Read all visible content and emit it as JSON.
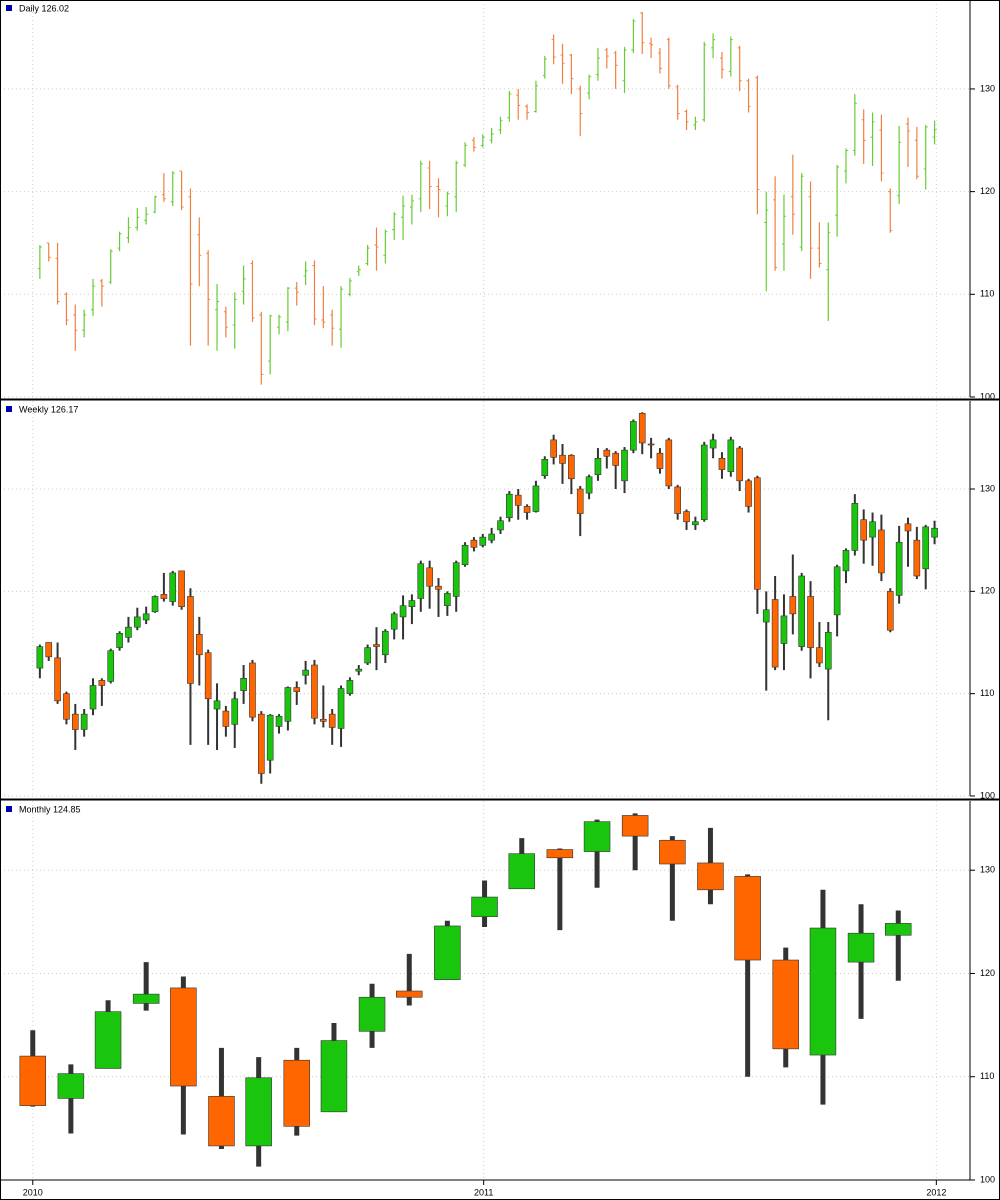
{
  "chart_data": [
    {
      "type": "ohlc",
      "title": "Daily 126.02",
      "legend_color": "#0000aa",
      "up_color": "#66cc33",
      "down_color": "#f08040",
      "xlim": [
        -4.5,
        105.0
      ],
      "ylim": [
        100,
        138.66
      ],
      "yticks": [
        100,
        110,
        120,
        130
      ],
      "grid": true,
      "open": [
        112.5,
        115.0,
        113.5,
        110.0,
        108.0,
        106.5,
        108.5,
        111.3,
        111.2,
        114.5,
        115.5,
        116.5,
        117.2,
        118.0,
        119.7,
        119.0,
        122.0,
        119.5,
        115.8,
        114.0,
        108.5,
        108.3,
        107.0,
        110.3,
        113.0,
        108.0,
        103.5,
        106.8,
        107.3,
        110.6,
        111.8,
        112.8,
        107.5,
        108.0,
        106.6,
        110.0,
        112.2,
        113.0,
        114.8,
        113.8,
        116.3,
        117.5,
        118.5,
        119.3,
        122.3,
        120.5,
        118.6,
        119.5,
        122.6,
        125.0,
        124.5,
        125.0,
        126.0,
        127.2,
        129.4,
        128.3,
        127.8,
        131.3,
        134.8,
        133.3,
        133.3,
        130.0,
        129.6,
        131.4,
        133.8,
        133.5,
        130.8,
        133.8,
        137.4,
        134.4,
        133.5,
        134.8,
        130.2,
        127.8,
        126.5,
        127.0,
        134.0,
        133.0,
        131.7,
        134.0,
        130.8,
        131.1,
        117.0,
        119.2,
        114.9,
        119.5,
        114.6,
        119.5,
        114.5,
        112.4,
        117.7,
        122.0,
        124.0,
        127.0,
        125.3,
        126.0,
        120.0,
        119.6,
        126.6,
        125.0,
        122.2,
        125.3
      ],
      "high": [
        114.8,
        115.0,
        115.0,
        110.2,
        109.0,
        108.5,
        111.5,
        111.5,
        114.4,
        116.1,
        117.5,
        118.4,
        118.5,
        119.6,
        121.8,
        122.0,
        122.0,
        120.3,
        117.5,
        114.3,
        111.0,
        108.8,
        110.2,
        112.8,
        113.3,
        108.3,
        108.0,
        108.0,
        110.7,
        111.2,
        113.2,
        113.3,
        110.8,
        108.5,
        110.8,
        111.6,
        112.8,
        114.8,
        116.5,
        116.3,
        118.0,
        119.6,
        119.7,
        123.0,
        123.0,
        121.3,
        120.0,
        123.0,
        124.8,
        125.3,
        125.6,
        126.2,
        127.3,
        129.8,
        130.0,
        128.5,
        130.8,
        133.2,
        135.3,
        134.4,
        133.4,
        130.3,
        131.4,
        134.0,
        134.0,
        133.7,
        134.1,
        136.8,
        137.5,
        135.0,
        134.0,
        135.0,
        130.4,
        128.0,
        127.3,
        134.6,
        135.4,
        133.6,
        135.1,
        134.2,
        131.0,
        131.3,
        120.0,
        121.5,
        119.7,
        123.6,
        121.8,
        121.0,
        117.0,
        117.0,
        122.6,
        124.2,
        129.5,
        128.0,
        127.7,
        127.5,
        120.3,
        126.4,
        127.2,
        126.3,
        126.5,
        126.9
      ],
      "low": [
        111.5,
        113.2,
        109.0,
        107.0,
        104.5,
        105.8,
        107.9,
        108.8,
        111.0,
        114.2,
        115.0,
        116.2,
        116.8,
        117.9,
        119.0,
        118.6,
        118.2,
        105.0,
        110.8,
        105.0,
        104.5,
        105.8,
        104.7,
        109.0,
        107.3,
        101.2,
        102.2,
        106.1,
        106.4,
        108.9,
        110.9,
        107.0,
        106.7,
        105.0,
        104.8,
        109.8,
        111.8,
        112.8,
        112.3,
        113.0,
        115.3,
        115.3,
        116.8,
        118.0,
        118.3,
        117.5,
        117.6,
        118.0,
        122.4,
        123.9,
        124.3,
        124.7,
        125.6,
        126.8,
        127.0,
        127.0,
        127.7,
        131.0,
        132.4,
        130.5,
        129.5,
        125.4,
        129.0,
        130.8,
        132.0,
        130.0,
        129.6,
        133.5,
        133.4,
        133.0,
        131.5,
        130.0,
        127.0,
        126.0,
        126.0,
        126.8,
        133.0,
        131.0,
        131.2,
        129.8,
        127.7,
        117.8,
        110.3,
        112.3,
        112.3,
        115.8,
        114.2,
        111.5,
        112.6,
        107.4,
        115.6,
        120.8,
        123.5,
        122.7,
        122.5,
        121.0,
        116.0,
        118.8,
        122.4,
        121.2,
        120.2,
        124.6
      ],
      "close": [
        114.6,
        113.6,
        109.3,
        107.5,
        106.5,
        108.0,
        110.8,
        110.8,
        114.2,
        115.9,
        116.5,
        117.5,
        117.8,
        119.5,
        119.3,
        121.8,
        118.5,
        111.0,
        113.8,
        109.5,
        109.3,
        106.8,
        109.5,
        111.5,
        107.7,
        102.2,
        107.9,
        107.8,
        110.6,
        110.2,
        112.3,
        107.6,
        107.3,
        106.7,
        110.5,
        111.3,
        112.4,
        114.5,
        114.6,
        116.1,
        117.8,
        118.6,
        119.1,
        122.7,
        120.5,
        120.2,
        119.8,
        122.8,
        124.5,
        124.3,
        125.3,
        125.6,
        126.9,
        129.5,
        128.4,
        127.7,
        130.3,
        132.9,
        133.1,
        132.5,
        131.0,
        127.6,
        131.2,
        133.0,
        133.2,
        132.3,
        133.8,
        136.6,
        134.5,
        134.3,
        132.0,
        130.3,
        127.6,
        126.8,
        126.8,
        134.3,
        134.8,
        131.9,
        134.8,
        130.8,
        128.3,
        120.2,
        118.2,
        112.6,
        117.6,
        117.8,
        121.5,
        114.5,
        113.0,
        116.0,
        122.4,
        124.0,
        128.6,
        125.0,
        126.8,
        121.8,
        116.2,
        124.8,
        125.9,
        121.5,
        126.3,
        126.02
      ]
    },
    {
      "type": "candlestick",
      "title": "Weekly 126.17",
      "legend_color": "#0000aa",
      "up_color": "#19c50d",
      "down_color": "#ff6600",
      "wick_color": "#333333",
      "xlim": [
        -4.5,
        105.0
      ],
      "ylim": [
        100,
        138.6
      ],
      "yticks": [
        100,
        110,
        120,
        130
      ],
      "grid": true,
      "open": [
        112.5,
        115.0,
        113.5,
        110.0,
        108.0,
        106.5,
        108.5,
        111.3,
        111.2,
        114.5,
        115.5,
        116.5,
        117.2,
        118.0,
        119.7,
        119.0,
        122.0,
        119.5,
        115.8,
        114.0,
        108.5,
        108.3,
        107.0,
        110.3,
        113.0,
        108.0,
        103.5,
        106.8,
        107.3,
        110.6,
        111.8,
        112.8,
        107.5,
        108.0,
        106.6,
        110.0,
        112.2,
        113.0,
        114.8,
        113.8,
        116.3,
        117.5,
        118.5,
        119.3,
        122.3,
        120.5,
        118.6,
        119.5,
        122.6,
        125.0,
        124.5,
        125.0,
        126.0,
        127.2,
        129.4,
        128.3,
        127.8,
        131.3,
        134.8,
        133.3,
        133.3,
        130.0,
        129.6,
        131.4,
        133.8,
        133.5,
        130.8,
        133.8,
        137.4,
        134.4,
        133.5,
        134.8,
        130.2,
        127.8,
        126.5,
        127.0,
        134.0,
        133.0,
        131.7,
        134.0,
        130.8,
        131.1,
        117.0,
        119.2,
        114.9,
        119.5,
        114.6,
        119.5,
        114.5,
        112.4,
        117.7,
        122.0,
        124.0,
        127.0,
        125.3,
        126.0,
        120.0,
        119.6,
        126.6,
        125.0,
        122.2,
        125.3
      ],
      "high": [
        114.8,
        115.0,
        115.0,
        110.2,
        109.0,
        108.5,
        111.5,
        111.5,
        114.4,
        116.1,
        117.5,
        118.4,
        118.5,
        119.6,
        121.8,
        122.0,
        122.0,
        120.3,
        117.5,
        114.3,
        111.0,
        108.8,
        110.2,
        112.8,
        113.3,
        108.3,
        108.0,
        108.0,
        110.7,
        111.2,
        113.2,
        113.3,
        110.8,
        108.5,
        110.8,
        111.6,
        112.8,
        114.8,
        116.5,
        116.3,
        118.0,
        119.6,
        119.7,
        123.0,
        123.0,
        121.3,
        120.0,
        123.0,
        124.8,
        125.3,
        125.6,
        126.2,
        127.3,
        129.8,
        130.0,
        128.5,
        130.8,
        133.2,
        135.3,
        134.4,
        133.4,
        130.3,
        131.4,
        134.0,
        134.0,
        133.7,
        134.1,
        136.8,
        137.5,
        135.0,
        134.0,
        135.0,
        130.4,
        128.0,
        127.3,
        134.6,
        135.4,
        133.6,
        135.1,
        134.2,
        131.0,
        131.3,
        120.0,
        121.5,
        119.7,
        123.6,
        121.8,
        121.0,
        117.0,
        117.0,
        122.6,
        124.2,
        129.5,
        128.0,
        127.7,
        127.5,
        120.3,
        126.4,
        127.2,
        126.3,
        126.5,
        126.9
      ],
      "low": [
        111.5,
        113.2,
        109.0,
        107.0,
        104.5,
        105.8,
        107.9,
        108.8,
        111.0,
        114.2,
        115.0,
        116.2,
        116.8,
        117.9,
        119.0,
        118.6,
        118.2,
        105.0,
        110.8,
        105.0,
        104.5,
        105.8,
        104.7,
        109.0,
        107.3,
        101.2,
        102.2,
        106.1,
        106.4,
        108.9,
        110.9,
        107.0,
        106.7,
        105.0,
        104.8,
        109.8,
        111.8,
        112.8,
        112.3,
        113.0,
        115.3,
        115.3,
        116.8,
        118.0,
        118.3,
        117.5,
        117.6,
        118.0,
        122.4,
        123.9,
        124.3,
        124.7,
        125.6,
        126.8,
        127.0,
        127.0,
        127.7,
        131.0,
        132.4,
        130.5,
        129.5,
        125.4,
        129.0,
        130.8,
        132.0,
        130.0,
        129.6,
        133.5,
        133.4,
        133.0,
        131.5,
        130.0,
        127.0,
        126.0,
        126.0,
        126.8,
        133.0,
        131.0,
        131.2,
        129.8,
        127.7,
        117.8,
        110.3,
        112.3,
        112.3,
        115.8,
        114.2,
        111.5,
        112.6,
        107.4,
        115.6,
        120.8,
        123.5,
        122.7,
        122.5,
        121.0,
        116.0,
        118.8,
        122.4,
        121.2,
        120.2,
        124.6
      ],
      "close": [
        114.6,
        113.6,
        109.3,
        107.5,
        106.5,
        108.0,
        110.8,
        110.8,
        114.2,
        115.9,
        116.5,
        117.5,
        117.8,
        119.5,
        119.3,
        121.8,
        118.5,
        111.0,
        113.8,
        109.5,
        109.3,
        106.8,
        109.5,
        111.5,
        107.7,
        102.2,
        107.9,
        107.8,
        110.6,
        110.2,
        112.3,
        107.6,
        107.3,
        106.7,
        110.5,
        111.3,
        112.4,
        114.5,
        114.6,
        116.1,
        117.8,
        118.6,
        119.1,
        122.7,
        120.5,
        120.2,
        119.8,
        122.8,
        124.5,
        124.3,
        125.3,
        125.6,
        126.9,
        129.5,
        128.4,
        127.7,
        130.3,
        132.9,
        133.1,
        132.5,
        131.0,
        127.6,
        131.2,
        133.0,
        133.2,
        132.3,
        133.8,
        136.6,
        134.5,
        134.3,
        132.0,
        130.3,
        127.6,
        126.8,
        126.8,
        134.3,
        134.8,
        131.9,
        134.8,
        130.8,
        128.3,
        120.2,
        118.2,
        112.6,
        117.6,
        117.8,
        121.5,
        114.5,
        113.0,
        116.0,
        122.4,
        124.0,
        128.6,
        125.0,
        126.8,
        121.8,
        116.2,
        124.8,
        125.9,
        121.5,
        126.3,
        126.17
      ]
    },
    {
      "type": "candlestick",
      "title": "Monthly 124.85",
      "legend_color": "#0000aa",
      "up_color": "#19c50d",
      "down_color": "#ff6600",
      "wick_color": "#333333",
      "xlim": [
        -4.5,
        105.0
      ],
      "ylim": [
        100,
        136.7
      ],
      "yticks": [
        100,
        110,
        120,
        130
      ],
      "grid": true,
      "xticks": [
        {
          "value": -0.8,
          "label": "2010"
        },
        {
          "value": 50.1,
          "label": "2011"
        },
        {
          "value": 101.2,
          "label": "2012"
        }
      ],
      "x": [
        -0.8,
        3.5,
        7.7,
        12.0,
        16.2,
        20.5,
        24.7,
        29.0,
        33.2,
        37.5,
        41.7,
        46.0,
        50.2,
        54.4,
        58.7,
        62.9,
        67.2,
        71.4,
        75.7,
        79.9,
        84.2,
        88.4,
        92.7,
        96.9
      ],
      "open": [
        112.0,
        107.9,
        110.8,
        117.1,
        118.6,
        108.1,
        103.3,
        111.6,
        106.6,
        114.4,
        118.3,
        119.4,
        125.5,
        128.2,
        132.0,
        131.8,
        135.3,
        132.9,
        130.7,
        129.4,
        121.3,
        112.1,
        121.1,
        123.7
      ],
      "high": [
        114.5,
        111.2,
        117.4,
        121.1,
        119.7,
        112.8,
        111.9,
        112.8,
        115.2,
        119.0,
        121.9,
        125.1,
        129.0,
        133.1,
        132.1,
        134.9,
        135.5,
        133.3,
        134.1,
        129.6,
        122.5,
        128.1,
        126.7,
        126.1
      ],
      "low": [
        107.1,
        104.5,
        110.8,
        116.4,
        104.4,
        103.0,
        101.3,
        104.3,
        106.6,
        112.8,
        116.9,
        119.4,
        124.5,
        128.2,
        124.2,
        128.3,
        130.0,
        125.1,
        126.7,
        110.0,
        110.9,
        107.3,
        115.6,
        119.3
      ],
      "close": [
        107.2,
        110.3,
        116.3,
        118.0,
        109.1,
        103.3,
        109.9,
        105.2,
        113.5,
        117.7,
        117.7,
        124.6,
        127.4,
        131.6,
        131.2,
        134.7,
        133.3,
        130.6,
        128.1,
        121.3,
        112.7,
        124.4,
        123.9,
        124.85
      ]
    }
  ]
}
